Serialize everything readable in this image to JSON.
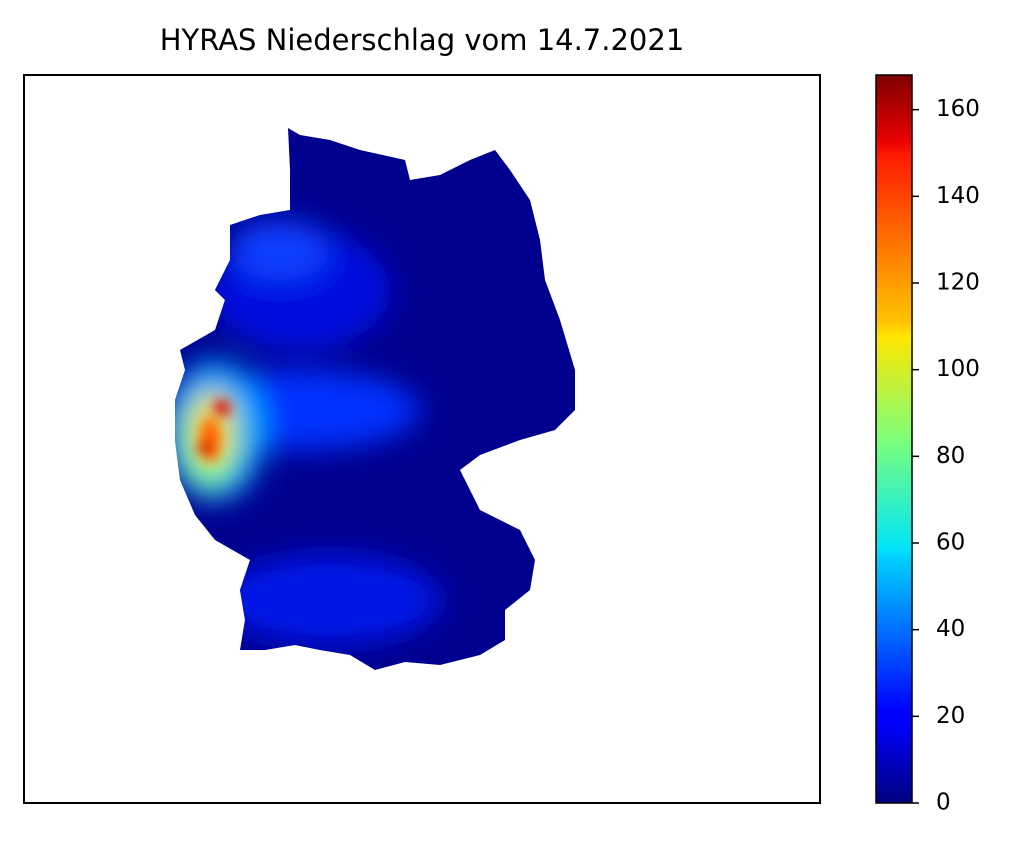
{
  "chart_data": {
    "type": "heatmap",
    "title": "HYRAS Niederschlag vom 14.7.2021",
    "colormap": "jet",
    "clim": [
      0,
      168
    ],
    "cticks": [
      0,
      20,
      40,
      60,
      80,
      100,
      120,
      140,
      160
    ]
  }
}
